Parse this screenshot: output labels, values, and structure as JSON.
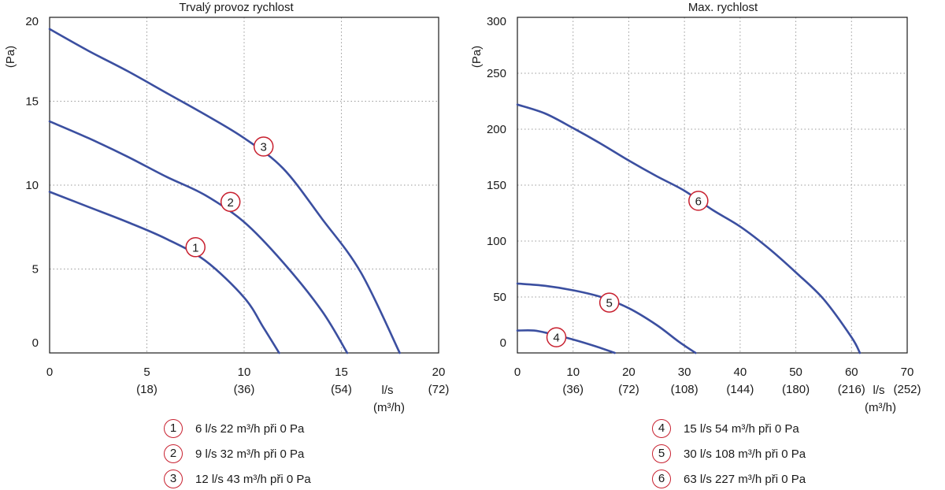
{
  "chart_data": [
    {
      "type": "line",
      "title": "Trvalý provoz rychlost",
      "ylabel": "(Pa)",
      "xlabel": "l/s",
      "xlabel2": "(m³/h)",
      "xlim": [
        0,
        20
      ],
      "ylim": [
        0,
        20
      ],
      "x_ticks": [
        "0",
        "5",
        "10",
        "15",
        "20"
      ],
      "x_ticks_secondary": [
        "",
        "(18)",
        "(36)",
        "(54)",
        "(72)"
      ],
      "y_ticks": [
        "0",
        "5",
        "10",
        "15",
        "20"
      ],
      "grid": true,
      "color": "#3b4fa0",
      "series": [
        {
          "name": "1",
          "marker_x": 7.5,
          "marker_y": 6.3,
          "points": [
            [
              0,
              9.6
            ],
            [
              2,
              8.7
            ],
            [
              4,
              7.8
            ],
            [
              6,
              6.8
            ],
            [
              8,
              5.5
            ],
            [
              10,
              3.3
            ],
            [
              11,
              1.5
            ],
            [
              11.8,
              0
            ]
          ]
        },
        {
          "name": "2",
          "marker_x": 9.3,
          "marker_y": 9.0,
          "points": [
            [
              0,
              13.8
            ],
            [
              2,
              12.8
            ],
            [
              4,
              11.7
            ],
            [
              6,
              10.5
            ],
            [
              8,
              9.4
            ],
            [
              10,
              7.8
            ],
            [
              12,
              5.4
            ],
            [
              14,
              2.5
            ],
            [
              15.3,
              0
            ]
          ]
        },
        {
          "name": "3",
          "marker_x": 11.0,
          "marker_y": 12.3,
          "points": [
            [
              0,
              19.3
            ],
            [
              2,
              18.0
            ],
            [
              4,
              16.8
            ],
            [
              6,
              15.5
            ],
            [
              8,
              14.2
            ],
            [
              10,
              12.8
            ],
            [
              12,
              11.0
            ],
            [
              14,
              8.0
            ],
            [
              16,
              4.8
            ],
            [
              18,
              0
            ]
          ]
        }
      ]
    },
    {
      "type": "line",
      "title": "Max. rychlost",
      "ylabel": "(Pa)",
      "xlabel": "l/s",
      "xlabel2": "(m³/h)",
      "xlim": [
        0,
        70
      ],
      "ylim": [
        0,
        300
      ],
      "x_ticks": [
        "0",
        "10",
        "20",
        "30",
        "40",
        "50",
        "60",
        "70"
      ],
      "x_ticks_secondary": [
        "",
        "(36)",
        "(72)",
        "(108)",
        "(144)",
        "(180)",
        "(216)",
        "(252)"
      ],
      "y_ticks": [
        "0",
        "50",
        "100",
        "150",
        "200",
        "250",
        "300"
      ],
      "grid": true,
      "color": "#3b4fa0",
      "series": [
        {
          "name": "4",
          "marker_x": 7.0,
          "marker_y": 14,
          "points": [
            [
              0,
              20
            ],
            [
              3,
              20
            ],
            [
              6,
              17
            ],
            [
              10,
              12
            ],
            [
              14,
              6
            ],
            [
              17.5,
              0
            ]
          ]
        },
        {
          "name": "5",
          "marker_x": 16.5,
          "marker_y": 45,
          "points": [
            [
              0,
              62
            ],
            [
              5,
              60
            ],
            [
              10,
              56
            ],
            [
              15,
              50
            ],
            [
              20,
              40
            ],
            [
              25,
              25
            ],
            [
              29,
              10
            ],
            [
              32,
              0
            ]
          ]
        },
        {
          "name": "6",
          "marker_x": 32.5,
          "marker_y": 136,
          "points": [
            [
              0,
              222
            ],
            [
              5,
              214
            ],
            [
              10,
              201
            ],
            [
              15,
              187
            ],
            [
              20,
              172
            ],
            [
              25,
              158
            ],
            [
              30,
              145
            ],
            [
              35,
              128
            ],
            [
              40,
              113
            ],
            [
              45,
              94
            ],
            [
              50,
              72
            ],
            [
              55,
              48
            ],
            [
              60,
              14
            ],
            [
              61.5,
              0
            ]
          ]
        }
      ]
    }
  ],
  "legend_left": [
    {
      "num": "1",
      "text": "6 l/s  22 m³/h při 0 Pa"
    },
    {
      "num": "2",
      "text": "9 l/s  32 m³/h při 0 Pa"
    },
    {
      "num": "3",
      "text": "12 l/s  43 m³/h při 0 Pa"
    }
  ],
  "legend_right": [
    {
      "num": "4",
      "text": "15 l/s  54 m³/h při 0 Pa"
    },
    {
      "num": "5",
      "text": "30 l/s  108 m³/h při 0 Pa"
    },
    {
      "num": "6",
      "text": "63 l/s  227 m³/h při 0 Pa"
    }
  ]
}
